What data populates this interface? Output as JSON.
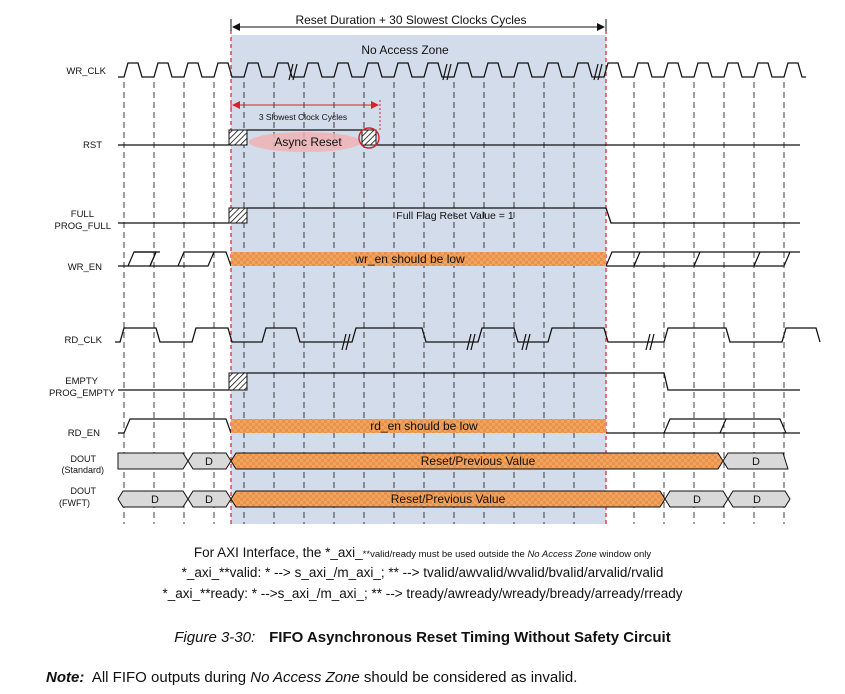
{
  "diagram": {
    "duration_label": "Reset Duration + 30 Slowest Clocks Cycles",
    "zone_label": "No Access Zone",
    "slowest_cycles_label": "3 Slowest Clock Cycles",
    "async_reset_label": "Async Reset",
    "full_flag_label": "Full Flag Reset Value = 1",
    "wr_en_low_label": "wr_en should be low",
    "rd_en_low_label": "rd_en should be low",
    "reset_prev_label": "Reset/Previous Value",
    "data_label": "D",
    "signals": {
      "wr_clk": "WR_CLK",
      "rst": "RST",
      "full": "FULL",
      "prog_full": "PROG_FULL",
      "wr_en": "WR_EN",
      "rd_clk": "RD_CLK",
      "empty": "EMPTY",
      "prog_empty": "PROG_EMPTY",
      "rd_en": "RD_EN",
      "dout_std": "DOUT",
      "dout_std_sub": "(Standard)",
      "dout_fwft": "DOUT",
      "dout_fwft_sub": "(FWFT)"
    },
    "colors": {
      "zone_fill": "#d3dcea",
      "orange_fill": "#f0a460",
      "gray_fill": "#d9d9d9",
      "reset_marker": "#d0252a",
      "async_fill": "#efb3b3"
    }
  },
  "caption": {
    "line1_a": "For AXI Interface, the *_axi_",
    "line1_b": "**valid/ready must be used outside the ",
    "line1_c": "No Access Zone",
    "line1_d": " window only",
    "line2": "*_axi_**valid: * --> s_axi_/m_axi_; ** --> tvalid/awvalid/wvalid/bvalid/arvalid/rvalid",
    "line3": "*_axi_**ready: * -->s_axi_/m_axi_; ** --> tready/awready/wready/bready/arready/rready",
    "figure_number": "Figure 3-30:",
    "figure_title": "FIFO Asynchronous Reset Timing Without Safety Circuit",
    "note_label": "Note:",
    "note_a": "All FIFO outputs during ",
    "note_b": "No Access Zone",
    "note_c": " should be considered as invalid."
  }
}
